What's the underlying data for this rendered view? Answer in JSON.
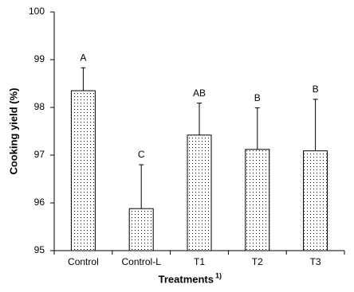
{
  "chart_data": {
    "type": "bar",
    "y_label": "Cooking yield (%)",
    "x_label": "Treatments",
    "x_label_sup": "1)",
    "categories": [
      "Control",
      "Control-L",
      "T1",
      "T2",
      "T3"
    ],
    "values": [
      98.35,
      95.88,
      97.42,
      97.12,
      97.09
    ],
    "errors": [
      0.48,
      0.92,
      0.67,
      0.87,
      1.08
    ],
    "letters": [
      "A",
      "C",
      "AB",
      "B",
      "B"
    ],
    "color": "#000000",
    "ylim": [
      95,
      100
    ],
    "yticks": [
      95,
      96,
      97,
      98,
      99,
      100
    ],
    "grid": false
  }
}
